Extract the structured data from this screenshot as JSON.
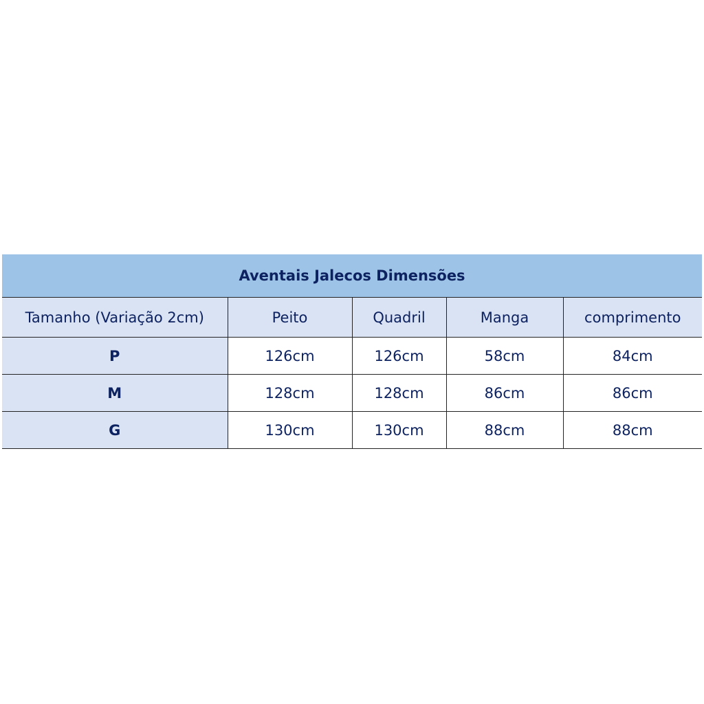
{
  "title": "Aventais Jalecos Dimensões",
  "headers": [
    "Tamanho (Variação 2cm)",
    "Peito",
    "Quadril",
    "Manga",
    "comprimento"
  ],
  "rows": [
    [
      "P",
      "126cm",
      "126cm",
      "58cm",
      "84cm"
    ],
    [
      "M",
      "128cm",
      "128cm",
      "86cm",
      "86cm"
    ],
    [
      "G",
      "130cm",
      "130cm",
      "88cm",
      "88cm"
    ]
  ],
  "colors": {
    "title_bg": "#9dc3e6",
    "header_bg": "#dae3f3",
    "text": "#0d2260"
  }
}
